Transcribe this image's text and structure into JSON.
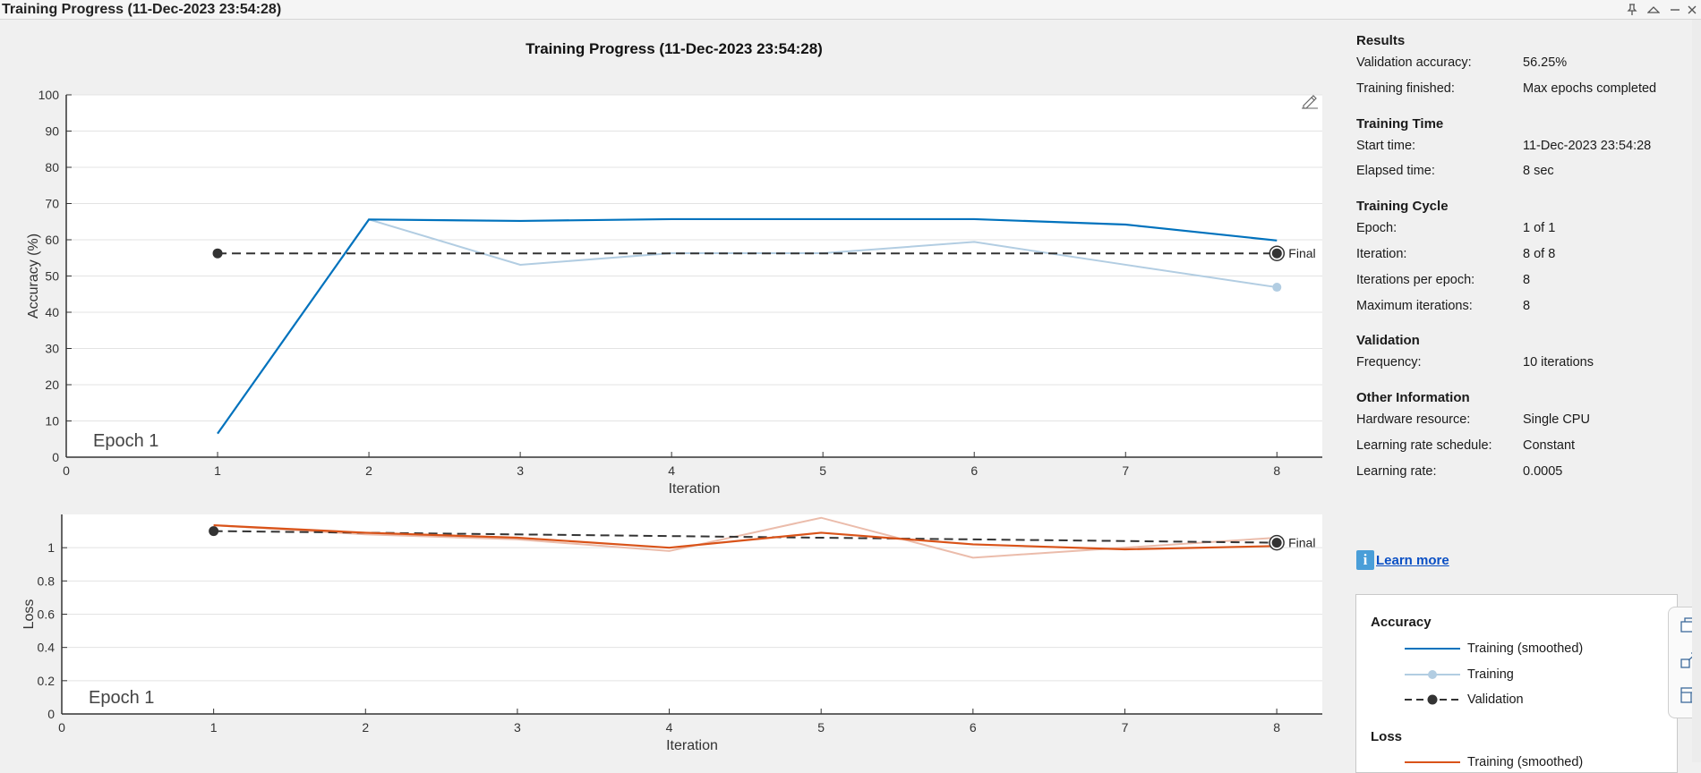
{
  "window": {
    "title": "Training Progress (11-Dec-2023 23:54:28)"
  },
  "plot_title": "Training Progress (11-Dec-2023 23:54:28)",
  "colors": {
    "training_smoothed_acc": "#0072bd",
    "training_acc": "#b2cde2",
    "validation": "#333333",
    "training_smoothed_loss": "#d95319",
    "training_loss": "#ebbcab",
    "panel_bg": "#f0f0f0"
  },
  "chart_data": [
    {
      "type": "line",
      "title": "",
      "xlabel": "Iteration",
      "ylabel": "Accuracy (%)",
      "xlim": [
        0,
        8.3
      ],
      "ylim": [
        0,
        100
      ],
      "xticks": [
        "0",
        "1",
        "2",
        "3",
        "4",
        "5",
        "6",
        "7",
        "8"
      ],
      "yticks": [
        "0",
        "10",
        "20",
        "30",
        "40",
        "50",
        "60",
        "70",
        "80",
        "90",
        "100"
      ],
      "grid": true,
      "annotation": "Epoch 1",
      "final_label": "Final",
      "series": [
        {
          "name": "Training (smoothed)",
          "x": [
            1,
            2,
            3,
            4,
            5,
            6,
            7,
            8
          ],
          "y": [
            6.5,
            65.6,
            65.2,
            65.7,
            65.7,
            65.7,
            64.2,
            59.8
          ]
        },
        {
          "name": "Training",
          "x": [
            1,
            2,
            3,
            4,
            5,
            6,
            7,
            8
          ],
          "y": [
            6.5,
            65.6,
            53.1,
            56.3,
            56.3,
            59.4,
            53.1,
            46.9
          ]
        },
        {
          "name": "Validation",
          "x": [
            1,
            8
          ],
          "y": [
            56.25,
            56.25
          ]
        }
      ]
    },
    {
      "type": "line",
      "title": "",
      "xlabel": "Iteration",
      "ylabel": "Loss",
      "xlim": [
        0,
        8.3
      ],
      "ylim": [
        0,
        1.2
      ],
      "xticks": [
        "0",
        "1",
        "2",
        "3",
        "4",
        "5",
        "6",
        "7",
        "8"
      ],
      "yticks": [
        "0",
        "0.2",
        "0.4",
        "0.6",
        "0.8",
        "1"
      ],
      "grid": true,
      "annotation": "Epoch 1",
      "final_label": "Final",
      "series": [
        {
          "name": "Training (smoothed)",
          "x": [
            1,
            2,
            3,
            4,
            5,
            6,
            7,
            8
          ],
          "y": [
            1.135,
            1.09,
            1.06,
            1.0,
            1.09,
            1.02,
            0.99,
            1.01
          ]
        },
        {
          "name": "Training",
          "x": [
            1,
            2,
            3,
            4,
            5,
            6,
            7,
            8
          ],
          "y": [
            1.135,
            1.08,
            1.05,
            0.98,
            1.18,
            0.94,
            1.0,
            1.06
          ]
        },
        {
          "name": "Validation",
          "x": [
            1,
            8
          ],
          "y": [
            1.1,
            1.03
          ]
        }
      ]
    }
  ],
  "results": {
    "sections": [
      {
        "title": "Results",
        "rows": [
          {
            "k": "Validation accuracy:",
            "v": "56.25%"
          },
          {
            "k": "Training finished:",
            "v": "Max epochs completed"
          }
        ]
      },
      {
        "title": "Training Time",
        "rows": [
          {
            "k": "Start time:",
            "v": "11-Dec-2023 23:54:28"
          },
          {
            "k": "Elapsed time:",
            "v": "8 sec"
          }
        ]
      },
      {
        "title": "Training Cycle",
        "rows": [
          {
            "k": "Epoch:",
            "v": "1 of 1"
          },
          {
            "k": "Iteration:",
            "v": "8 of 8"
          },
          {
            "k": "Iterations per epoch:",
            "v": "8"
          },
          {
            "k": "Maximum iterations:",
            "v": "8"
          }
        ]
      },
      {
        "title": "Validation",
        "rows": [
          {
            "k": "Frequency:",
            "v": "10 iterations"
          }
        ]
      },
      {
        "title": "Other Information",
        "rows": [
          {
            "k": "Hardware resource:",
            "v": "Single CPU"
          },
          {
            "k": "Learning rate schedule:",
            "v": "Constant"
          },
          {
            "k": "Learning rate:",
            "v": "0.0005"
          }
        ]
      }
    ]
  },
  "learn_more": "Learn more",
  "legend": {
    "accuracy_title": "Accuracy",
    "accuracy_items": [
      "Training (smoothed)",
      "Training",
      "Validation"
    ],
    "loss_title": "Loss",
    "loss_items": [
      "Training (smoothed)"
    ]
  },
  "icons": {
    "pin": "pin-icon",
    "collapse": "chevron-up-icon",
    "minimize": "minimize-icon",
    "close": "close-icon",
    "edit": "brush-edit-icon",
    "info": "info-icon"
  }
}
